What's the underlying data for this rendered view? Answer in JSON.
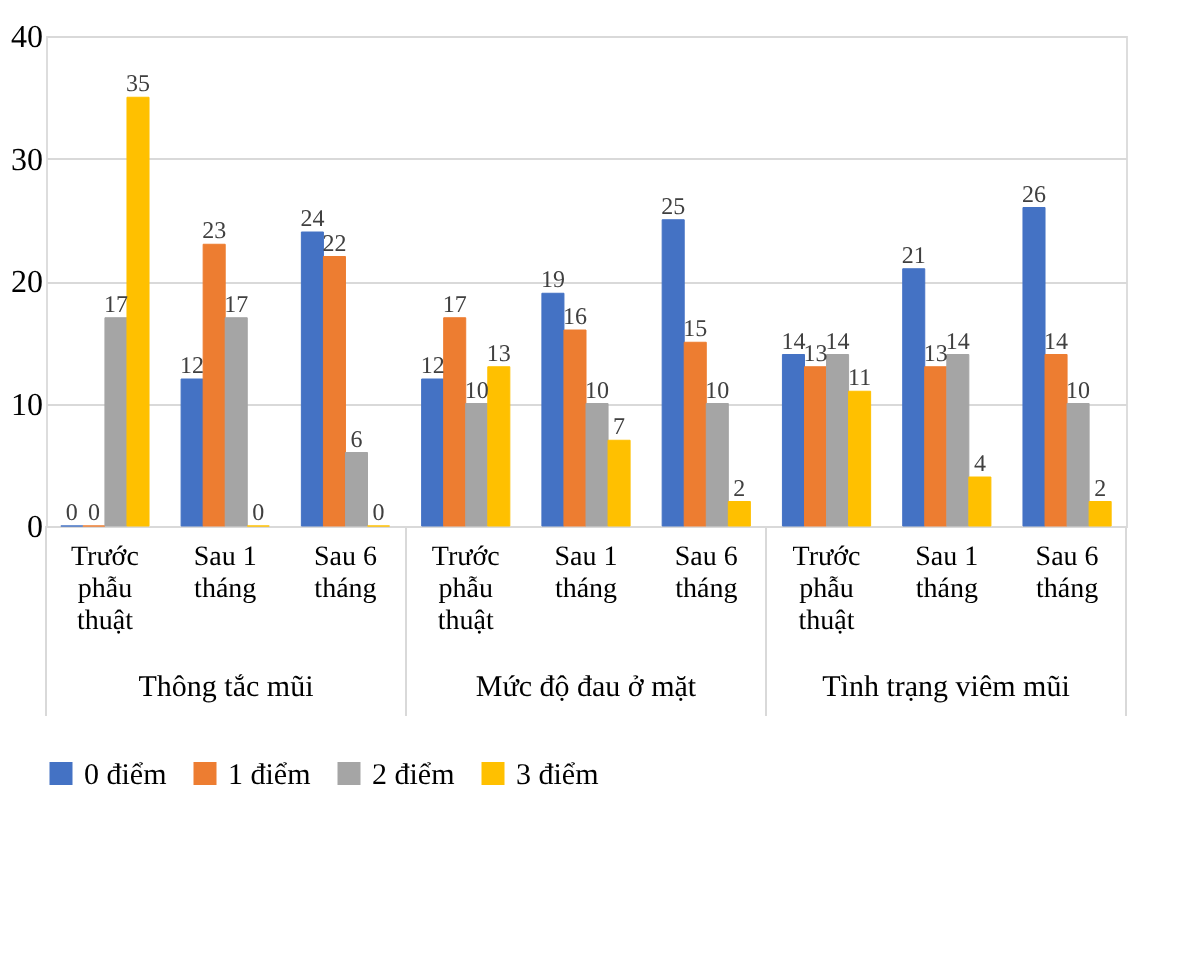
{
  "chart_data": {
    "type": "bar",
    "categories": [
      "Trước phẫu thuật",
      "Sau 1 tháng",
      "Sau 6 tháng",
      "Trước phẫu thuật",
      "Sau 1 tháng",
      "Sau 6 tháng",
      "Trước phẫu thuật",
      "Sau 1 tháng",
      "Sau 6 tháng"
    ],
    "series": [
      {
        "name": "0 điểm",
        "color": "#4472c4",
        "values": [
          0,
          12,
          24,
          12,
          19,
          25,
          14,
          21,
          26
        ]
      },
      {
        "name": "1 điểm",
        "color": "#ed7d31",
        "values": [
          0,
          23,
          22,
          17,
          16,
          15,
          13,
          13,
          14
        ]
      },
      {
        "name": "2 điểm",
        "color": "#a5a5a5",
        "values": [
          17,
          17,
          6,
          10,
          10,
          10,
          14,
          14,
          10
        ]
      },
      {
        "name": "3 điểm",
        "color": "#ffc000",
        "values": [
          35,
          0,
          0,
          13,
          7,
          2,
          11,
          4,
          2
        ]
      }
    ],
    "annotations": [
      "Thông tắc mũi",
      "Mức độ đau ở mặt",
      "Tình trạng viêm mũi"
    ],
    "ylim": [
      0,
      40
    ],
    "yticks": [
      0,
      10,
      20,
      30,
      40
    ],
    "grid": "y",
    "legend": "bottom",
    "data_labels": true
  }
}
